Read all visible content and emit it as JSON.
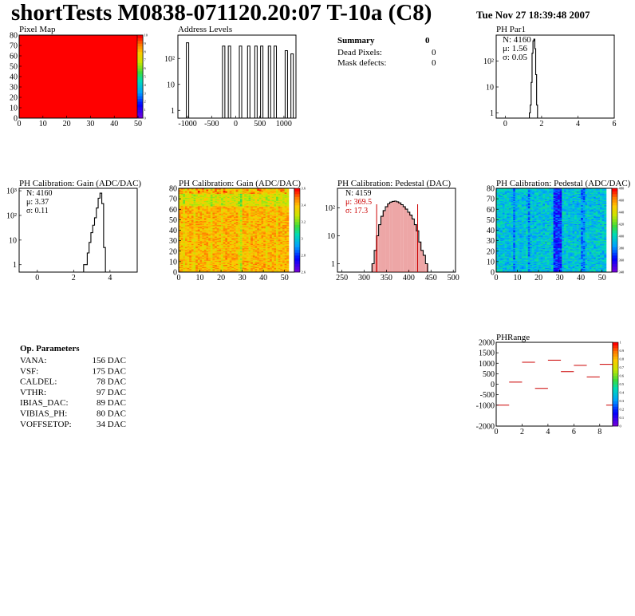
{
  "header": {
    "title": "shortTests M0838-071120.20:07 T-10a (C8)",
    "date": "Tue Nov 27 18:39:48 2007"
  },
  "panels": {
    "pixel_map": {
      "title": "Pixel Map",
      "x_ticks": [
        "0",
        "10",
        "20",
        "30",
        "40",
        "50"
      ],
      "y_ticks": [
        "0",
        "10",
        "20",
        "30",
        "40",
        "50",
        "60",
        "70",
        "80"
      ],
      "z_ticks": [
        "0",
        "1",
        "2",
        "3",
        "4",
        "5",
        "6",
        "7",
        "8",
        "9",
        "10"
      ]
    },
    "address_levels": {
      "title": "Address Levels",
      "x_ticks": [
        "-1000",
        "-500",
        "0",
        "500",
        "1000"
      ],
      "y_ticks": [
        "1",
        "10",
        "10²"
      ]
    },
    "summary": {
      "title": "Summary",
      "value": "0",
      "rows": [
        {
          "label": "Dead Pixels:",
          "value": "0"
        },
        {
          "label": "Mask defects:",
          "value": "0"
        }
      ]
    },
    "ph_par1": {
      "title": "PH Par1",
      "stats": [
        "N: 4160",
        "μ: 1.56",
        "σ: 0.05"
      ],
      "x_ticks": [
        "0",
        "2",
        "4",
        "6"
      ],
      "y_ticks": [
        "1",
        "10",
        "10²"
      ]
    },
    "gain_hist": {
      "title": "PH Calibration: Gain (ADC/DAC)",
      "stats": [
        "N: 4160",
        "μ: 3.37",
        "σ: 0.11"
      ],
      "x_ticks": [
        "0",
        "2",
        "4"
      ],
      "y_ticks": [
        "1",
        "10",
        "10²",
        "10³"
      ]
    },
    "gain_map": {
      "title": "PH Calibration: Gain (ADC/DAC)",
      "x_ticks": [
        "0",
        "10",
        "20",
        "30",
        "40",
        "50"
      ],
      "y_ticks": [
        "0",
        "10",
        "20",
        "30",
        "40",
        "50",
        "60",
        "70",
        "80"
      ],
      "z_ticks": [
        "2.6",
        "2.8",
        "3",
        "3.2",
        "3.4",
        "3.6"
      ]
    },
    "pedestal_hist": {
      "title": "PH Calibration: Pedestal (DAC)",
      "stats": [
        "N: 4159",
        "μ: 369.5",
        "σ: 17.3"
      ],
      "x_ticks": [
        "250",
        "300",
        "350",
        "400",
        "450",
        "500"
      ],
      "y_ticks": [
        "1",
        "10",
        "10²"
      ]
    },
    "pedestal_map": {
      "title": "PH Calibration: Pedestal (ADC/DAC)",
      "x_ticks": [
        "0",
        "10",
        "20",
        "30",
        "40",
        "50"
      ],
      "y_ticks": [
        "0",
        "10",
        "20",
        "30",
        "40",
        "50",
        "60",
        "70",
        "80"
      ],
      "z_ticks": [
        "340",
        "360",
        "380",
        "400",
        "420",
        "440",
        "460",
        "480"
      ]
    },
    "ph_range": {
      "title": "PHRange",
      "x_ticks": [
        "0",
        "2",
        "4",
        "6",
        "8"
      ],
      "y_ticks": [
        "-2000",
        "-1000",
        "-500",
        "0",
        "500",
        "1000",
        "1500",
        "2000"
      ],
      "z_ticks": [
        "0",
        "0.1",
        "0.2",
        "0.3",
        "0.4",
        "0.5",
        "0.6",
        "0.7",
        "0.8",
        "0.9",
        "1"
      ]
    }
  },
  "op_params": {
    "title": "Op. Parameters",
    "rows": [
      {
        "name": "VANA:",
        "value": "156 DAC"
      },
      {
        "name": "VSF:",
        "value": "175 DAC"
      },
      {
        "name": "CALDEL:",
        "value": "78 DAC"
      },
      {
        "name": "VTHR:",
        "value": "97 DAC"
      },
      {
        "name": "IBIAS_DAC:",
        "value": "89 DAC"
      },
      {
        "name": "VIBIAS_PH:",
        "value": "80 DAC"
      },
      {
        "name": "VOFFSETOP:",
        "value": "34 DAC"
      }
    ]
  },
  "colors": {
    "map_fill": "#ff0000",
    "hist_line": "#000000",
    "fit_line": "#cc0000",
    "stats_red": "#cc0000"
  },
  "chart_data": [
    {
      "id": "pixel_map",
      "type": "heatmap",
      "title": "Pixel Map",
      "xlim": [
        0,
        52
      ],
      "ylim": [
        0,
        80
      ],
      "zlim": [
        0,
        10
      ],
      "value_all": 10
    },
    {
      "id": "address_levels",
      "type": "line",
      "title": "Address Levels",
      "log_y": true,
      "xlim": [
        -1200,
        1250
      ],
      "x": [
        -1050,
        -1000,
        -980,
        -300,
        -260,
        -230,
        -200,
        -150,
        -100,
        -80,
        -50,
        0,
        50,
        180,
        230,
        260,
        300,
        500,
        540,
        580,
        620,
        700,
        740,
        780,
        820,
        1000,
        1040,
        1080,
        1120,
        1150,
        1200
      ],
      "y": [
        0,
        0,
        400,
        0,
        300,
        0,
        300,
        0,
        0,
        0,
        0,
        0,
        0,
        0,
        300,
        0,
        300,
        0,
        300,
        0,
        300,
        0,
        300,
        0,
        300,
        0,
        300,
        0,
        150,
        0,
        150
      ]
    },
    {
      "id": "ph_par1",
      "type": "bar",
      "title": "PH Par1",
      "log_y": true,
      "xlim": [
        -0.5,
        6
      ],
      "x": [
        1.35,
        1.4,
        1.45,
        1.5,
        1.55,
        1.6,
        1.65,
        1.7,
        1.75
      ],
      "values": [
        1,
        2,
        15,
        200,
        600,
        700,
        300,
        30,
        2
      ],
      "stats": {
        "N": 4160,
        "mean": 1.56,
        "sigma": 0.05
      }
    },
    {
      "id": "gain_hist",
      "type": "bar",
      "title": "PH Calibration: Gain (ADC/DAC)",
      "log_y": true,
      "xlim": [
        -1,
        5.5
      ],
      "x": [
        2.6,
        2.7,
        2.8,
        2.9,
        3.0,
        3.1,
        3.2,
        3.3,
        3.4,
        3.5,
        3.6,
        3.7
      ],
      "values": [
        1,
        1,
        3,
        8,
        20,
        40,
        80,
        200,
        500,
        800,
        300,
        5
      ],
      "stats": {
        "N": 4160,
        "mean": 3.37,
        "sigma": 0.11
      }
    },
    {
      "id": "gain_map",
      "type": "heatmap",
      "title": "PH Calibration: Gain (ADC/DAC)",
      "xlim": [
        0,
        52
      ],
      "ylim": [
        0,
        80
      ],
      "zlim": [
        2.5,
        3.6
      ]
    },
    {
      "id": "pedestal_hist",
      "type": "bar",
      "title": "PH Calibration: Pedestal (DAC)",
      "log_y": true,
      "xlim": [
        240,
        505
      ],
      "x": [
        320,
        325,
        330,
        335,
        340,
        345,
        350,
        355,
        360,
        365,
        370,
        375,
        380,
        385,
        390,
        395,
        400,
        405,
        410,
        415,
        420,
        425,
        430,
        435,
        440
      ],
      "values": [
        1,
        3,
        10,
        25,
        50,
        80,
        110,
        140,
        160,
        170,
        175,
        165,
        150,
        130,
        110,
        90,
        70,
        55,
        40,
        25,
        15,
        6,
        3,
        2,
        1
      ],
      "fit_range": [
        328,
        420
      ],
      "stats": {
        "N": 4159,
        "mean": 369.5,
        "sigma": 17.3
      }
    },
    {
      "id": "pedestal_map",
      "type": "heatmap",
      "title": "PH Calibration: Pedestal (ADC/DAC)",
      "xlim": [
        0,
        52
      ],
      "ylim": [
        0,
        80
      ],
      "zlim": [
        330,
        490
      ]
    },
    {
      "id": "ph_range",
      "type": "heatmap",
      "title": "PHRange",
      "xlim": [
        0,
        9
      ],
      "ylim": [
        -2000,
        2000
      ],
      "segments": [
        {
          "x": 0,
          "y": -1000
        },
        {
          "x": 1,
          "y": 100
        },
        {
          "x": 2,
          "y": 1050
        },
        {
          "x": 3,
          "y": -200
        },
        {
          "x": 4,
          "y": 1150
        },
        {
          "x": 5,
          "y": 600
        },
        {
          "x": 6,
          "y": 900
        },
        {
          "x": 7,
          "y": 350
        },
        {
          "x": 8,
          "y": 950
        },
        {
          "x": 8.5,
          "y": -1000
        }
      ]
    }
  ]
}
